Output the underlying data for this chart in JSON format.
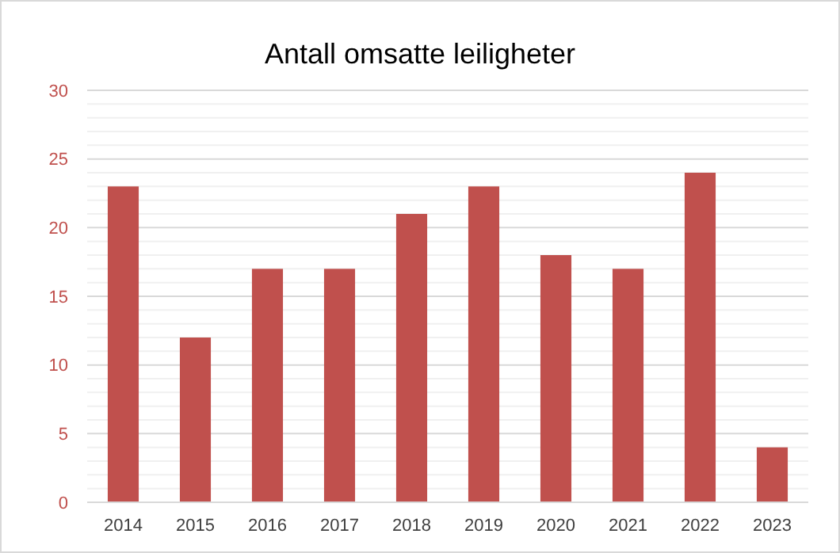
{
  "chart_data": {
    "type": "bar",
    "title": "Antall omsatte leiligheter",
    "categories": [
      "2014",
      "2015",
      "2016",
      "2017",
      "2018",
      "2019",
      "2020",
      "2021",
      "2022",
      "2023"
    ],
    "values": [
      23,
      12,
      17,
      17,
      21,
      23,
      18,
      17,
      24,
      4
    ],
    "color": "#c0504d",
    "ylim": [
      0,
      30
    ],
    "yticks": [
      0,
      {
        "value": 1,
        "label": null
      },
      {
        "value": 2,
        "label": null
      },
      {
        "value": 3,
        "label": null
      },
      {
        "value": 4,
        "label": null
      },
      5,
      {
        "value": 6,
        "label": null
      },
      {
        "value": 7,
        "label": null
      },
      {
        "value": 8,
        "label": null
      },
      {
        "value": 9,
        "label": null
      },
      10,
      {
        "value": 11,
        "label": null
      },
      {
        "value": 12,
        "label": null
      },
      {
        "value": 13,
        "label": null
      },
      {
        "value": 14,
        "label": null
      },
      15,
      {
        "value": 16,
        "label": null
      },
      {
        "value": 17,
        "label": null
      },
      {
        "value": 18,
        "label": null
      },
      {
        "value": 19,
        "label": null
      },
      20,
      {
        "value": 21,
        "label": null
      },
      {
        "value": 22,
        "label": null
      },
      {
        "value": 23,
        "label": null
      },
      {
        "value": 24,
        "label": null
      },
      25,
      {
        "value": 26,
        "label": null
      },
      {
        "value": 27,
        "label": null
      },
      {
        "value": 28,
        "label": null
      },
      {
        "value": 29,
        "label": null
      },
      30
    ],
    "grid": true
  }
}
